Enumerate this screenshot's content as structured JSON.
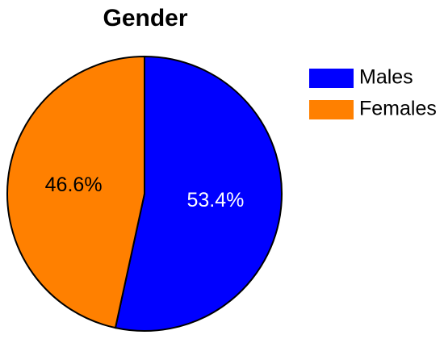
{
  "chart_data": {
    "type": "pie",
    "title": "Gender",
    "slices": [
      {
        "label": "Males",
        "value": 53.4,
        "display": "53.4%",
        "color": "#0000ff",
        "label_color": "#ffffff"
      },
      {
        "label": "Females",
        "value": 46.6,
        "display": "46.6%",
        "color": "#ff8000",
        "label_color": "#000000"
      }
    ],
    "start_angle_deg": 0,
    "direction": "clockwise",
    "legend_position": "right",
    "outline_color": "#000000"
  }
}
